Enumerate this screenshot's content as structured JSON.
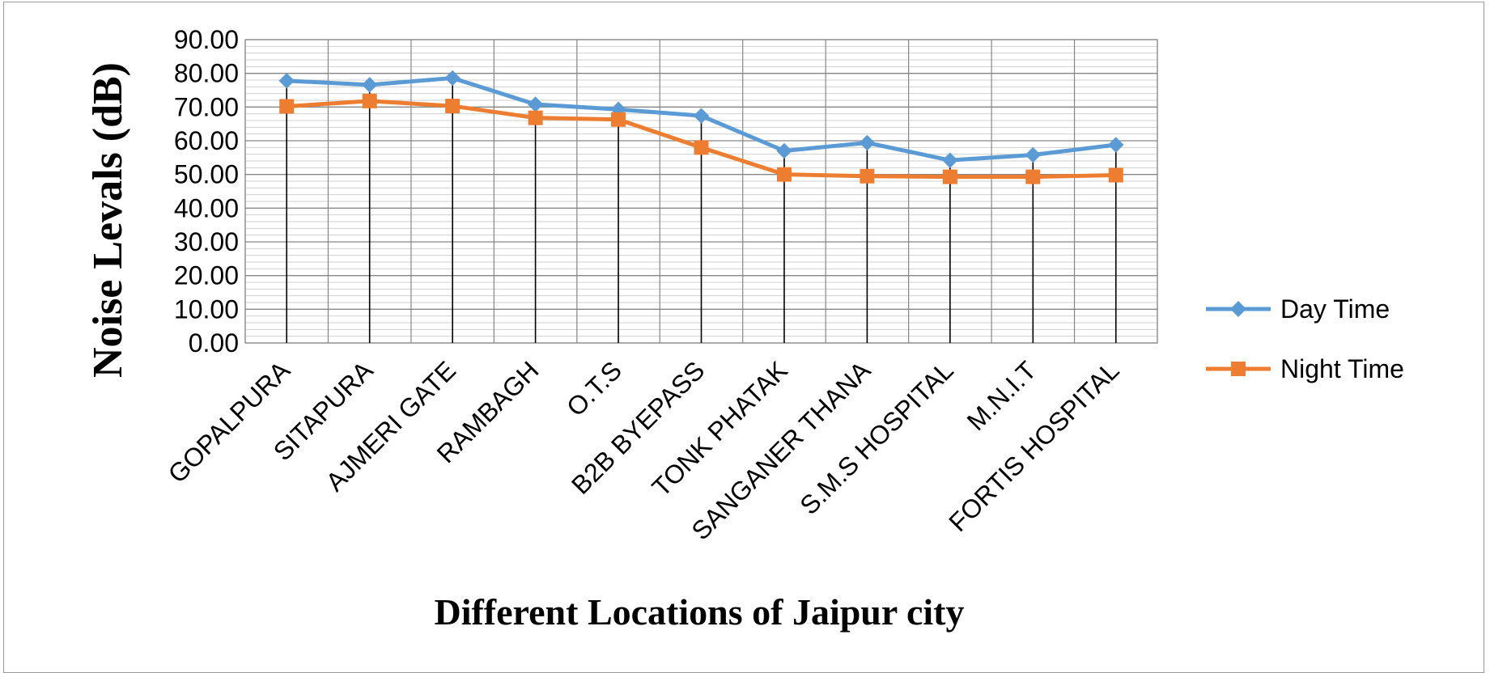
{
  "chart_data": {
    "type": "line",
    "title": "",
    "xlabel": "Different Locations of Jaipur city",
    "ylabel": "Noise Levals (dB)",
    "ylim": [
      0,
      90
    ],
    "y_major_step": 10,
    "y_minor_step": 2,
    "y_tick_decimals": 2,
    "grid": true,
    "legend_position": "right",
    "categories": [
      "GOPALPURA",
      "SITAPURA",
      "AJMERI GATE",
      "RAMBAGH",
      "O.T.S",
      "B2B BYEPASS",
      "TONK PHATAK",
      "SANGANER THANA",
      "S.M.S HOSPITAL",
      "M.N.I.T",
      "FORTIS HOSPITAL"
    ],
    "series": [
      {
        "name": "Day Time",
        "color": "#5B9BD5",
        "marker": "diamond",
        "values": [
          77.8,
          76.6,
          78.6,
          70.8,
          69.3,
          67.4,
          57.0,
          59.4,
          54.2,
          55.8,
          58.8
        ]
      },
      {
        "name": "Night Time",
        "color": "#ED7D31",
        "marker": "square",
        "values": [
          70.2,
          71.8,
          70.3,
          66.8,
          66.3,
          58.0,
          50.0,
          49.5,
          49.3,
          49.3,
          49.8
        ]
      }
    ]
  }
}
